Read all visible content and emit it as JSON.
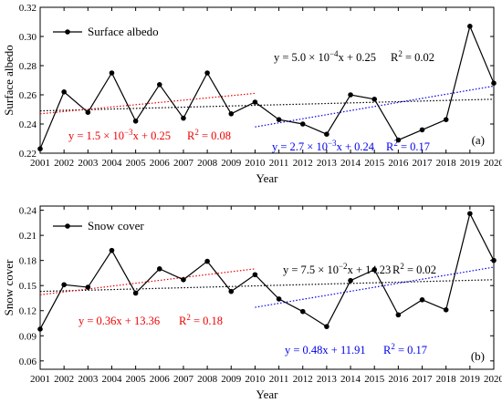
{
  "chart_data": [
    {
      "type": "line",
      "panel_label": "(a)",
      "xlabel": "Year",
      "ylabel": "Surface albedo",
      "x": [
        2001,
        2002,
        2003,
        2004,
        2005,
        2006,
        2007,
        2008,
        2009,
        2010,
        2011,
        2012,
        2013,
        2014,
        2015,
        2016,
        2017,
        2018,
        2019,
        2020
      ],
      "x_ticks": [
        "2001",
        "2002",
        "2003",
        "2004",
        "2005",
        "2006",
        "2007",
        "2008",
        "2009",
        "2010",
        "2011",
        "2012",
        "2013",
        "2014",
        "2015",
        "2016",
        "2017",
        "2018",
        "2019",
        "2020"
      ],
      "xlim": [
        2001,
        2020
      ],
      "ylim": [
        0.22,
        0.32
      ],
      "y_ticks": [
        "0.22",
        "0.24",
        "0.26",
        "0.28",
        "0.30",
        "0.32"
      ],
      "series": [
        {
          "name": "Surface albedo",
          "values": [
            0.223,
            0.262,
            0.248,
            0.275,
            0.242,
            0.267,
            0.244,
            0.275,
            0.247,
            0.255,
            0.243,
            0.24,
            0.233,
            0.26,
            0.257,
            0.229,
            0.236,
            0.243,
            0.307,
            0.268
          ]
        }
      ],
      "trends": [
        {
          "equation_parts": [
            "y = 5.0 × 10",
            "−4",
            "x + 0.25"
          ],
          "r2_parts": [
            "R",
            "2",
            " = 0.02"
          ],
          "x_range": [
            2001,
            2020
          ],
          "y_range": [
            0.249,
            0.257
          ],
          "color": "#000000"
        },
        {
          "equation_parts": [
            "y = 1.5 × 10",
            "−3",
            "x + 0.25"
          ],
          "r2_parts": [
            "R",
            "2",
            " = 0.08"
          ],
          "x_range": [
            2001,
            2010
          ],
          "y_range": [
            0.247,
            0.261
          ],
          "color": "#ee0000"
        },
        {
          "equation_parts": [
            "y = 2.7 × 10",
            "−3",
            "x + 0.24"
          ],
          "r2_parts": [
            "R",
            "2",
            " = 0.17"
          ],
          "x_range": [
            2010,
            2020
          ],
          "y_range": [
            0.238,
            0.266
          ],
          "color": "#0000ee"
        }
      ]
    },
    {
      "type": "line",
      "panel_label": "(b)",
      "xlabel": "Year",
      "ylabel": "Snow cover",
      "x": [
        2001,
        2002,
        2003,
        2004,
        2005,
        2006,
        2007,
        2008,
        2009,
        2010,
        2011,
        2012,
        2013,
        2014,
        2015,
        2016,
        2017,
        2018,
        2019,
        2020
      ],
      "x_ticks": [
        "2001",
        "2002",
        "2003",
        "2004",
        "2005",
        "2006",
        "2007",
        "2008",
        "2009",
        "2010",
        "2011",
        "2012",
        "2013",
        "2014",
        "2015",
        "2016",
        "2017",
        "2018",
        "2019",
        "2020"
      ],
      "xlim": [
        2001,
        2020
      ],
      "ylim": [
        0.05,
        0.245
      ],
      "y_ticks": [
        "0.06",
        "0.09",
        "0.12",
        "0.15",
        "0.18",
        "0.21",
        "0.24"
      ],
      "series": [
        {
          "name": "Snow cover",
          "values": [
            0.098,
            0.151,
            0.148,
            0.192,
            0.141,
            0.17,
            0.157,
            0.179,
            0.143,
            0.163,
            0.134,
            0.119,
            0.101,
            0.156,
            0.169,
            0.115,
            0.133,
            0.121,
            0.236,
            0.18
          ]
        }
      ],
      "trends": [
        {
          "equation_parts": [
            "y = 7.5 × 10",
            "−2",
            "x + 14.23"
          ],
          "r2_parts": [
            "R",
            "2",
            " = 0.02"
          ],
          "x_range": [
            2001,
            2020
          ],
          "y_range": [
            0.143,
            0.157
          ],
          "color": "#000000"
        },
        {
          "equation_parts": [
            "y = 0.36x + 13.36",
            "",
            ""
          ],
          "r2_parts": [
            "R",
            "2",
            " = 0.18"
          ],
          "x_range": [
            2001,
            2010
          ],
          "y_range": [
            0.139,
            0.17
          ],
          "color": "#ee0000"
        },
        {
          "equation_parts": [
            "y = 0.48x + 11.91",
            "",
            ""
          ],
          "r2_parts": [
            "R",
            "2",
            " = 0.17"
          ],
          "x_range": [
            2010,
            2020
          ],
          "y_range": [
            0.124,
            0.172
          ],
          "color": "#0000ee"
        }
      ]
    }
  ]
}
